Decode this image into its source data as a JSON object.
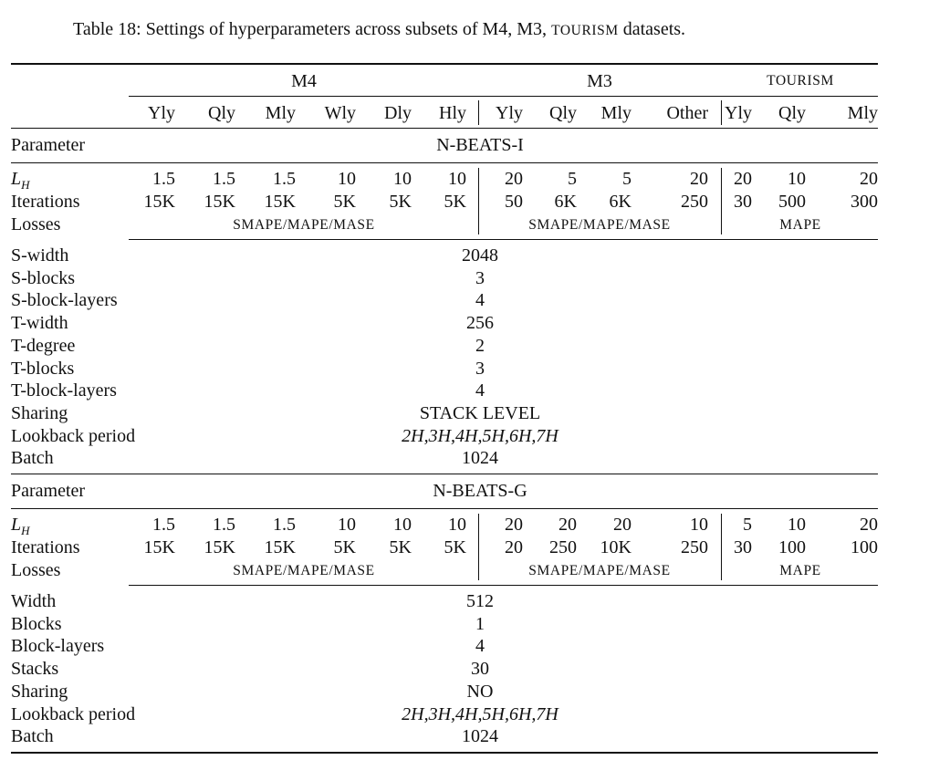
{
  "caption": {
    "prefix": "Table 18: Settings of hyperparameters across subsets of M4, M3, ",
    "smallcaps": "TOURISM",
    "suffix": " datasets."
  },
  "groups": [
    "M4",
    "M3",
    "TOURISM"
  ],
  "subsets": [
    "Yly",
    "Qly",
    "Mly",
    "Wly",
    "Dly",
    "Hly",
    "Yly",
    "Qly",
    "Mly",
    "Other",
    "Yly",
    "Qly",
    "Mly"
  ],
  "param_header": "Parameter",
  "sections": [
    {
      "model": "N-BEATS-I",
      "lh_label": "L",
      "lh_sub": "H",
      "lh_values": [
        "1.5",
        "1.5",
        "1.5",
        "10",
        "10",
        "10",
        "20",
        "5",
        "5",
        "20",
        "20",
        "10",
        "20"
      ],
      "iter_label": "Iterations",
      "iter_values": [
        "15K",
        "15K",
        "15K",
        "5K",
        "5K",
        "5K",
        "50",
        "6K",
        "6K",
        "250",
        "30",
        "500",
        "300"
      ],
      "loss_label": "Losses",
      "losses": [
        "SMAPE/MAPE/MASE",
        "SMAPE/MAPE/MASE",
        "MAPE"
      ],
      "params": [
        {
          "name": "S-width",
          "value": "2048"
        },
        {
          "name": "S-blocks",
          "value": "3"
        },
        {
          "name": "S-block-layers",
          "value": "4"
        },
        {
          "name": "T-width",
          "value": "256"
        },
        {
          "name": "T-degree",
          "value": "2"
        },
        {
          "name": "T-blocks",
          "value": "3"
        },
        {
          "name": "T-block-layers",
          "value": "4"
        },
        {
          "name": "Sharing",
          "value": "STACK LEVEL"
        },
        {
          "name": "Lookback period",
          "value": "2H,3H,4H,5H,6H,7H"
        },
        {
          "name": "Batch",
          "value": "1024"
        }
      ]
    },
    {
      "model": "N-BEATS-G",
      "lh_label": "L",
      "lh_sub": "H",
      "lh_values": [
        "1.5",
        "1.5",
        "1.5",
        "10",
        "10",
        "10",
        "20",
        "20",
        "20",
        "10",
        "5",
        "10",
        "20"
      ],
      "iter_label": "Iterations",
      "iter_values": [
        "15K",
        "15K",
        "15K",
        "5K",
        "5K",
        "5K",
        "20",
        "250",
        "10K",
        "250",
        "30",
        "100",
        "100"
      ],
      "loss_label": "Losses",
      "losses": [
        "SMAPE/MAPE/MASE",
        "SMAPE/MAPE/MASE",
        "MAPE"
      ],
      "params": [
        {
          "name": "Width",
          "value": "512"
        },
        {
          "name": "Blocks",
          "value": "1"
        },
        {
          "name": "Block-layers",
          "value": "4"
        },
        {
          "name": "Stacks",
          "value": "30"
        },
        {
          "name": "Sharing",
          "value": "NO"
        },
        {
          "name": "Lookback period",
          "value": "2H,3H,4H,5H,6H,7H"
        },
        {
          "name": "Batch",
          "value": "1024"
        }
      ]
    }
  ]
}
